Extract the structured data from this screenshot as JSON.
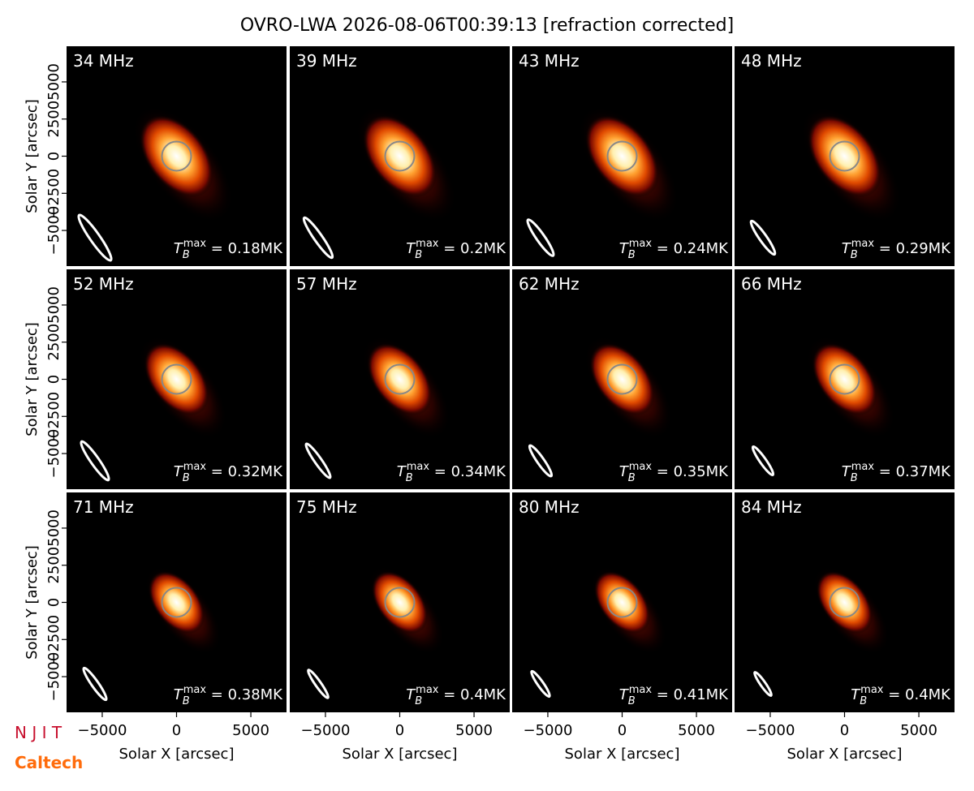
{
  "chart_data": {
    "type": "image_grid",
    "title": "OVRO-LWA 2026-08-06T00:39:13 [refraction corrected]",
    "xlabel": "Solar X [arcsec]",
    "ylabel": "Solar Y [arcsec]",
    "xlim": [
      -7400,
      7400
    ],
    "ylim": [
      -7400,
      7400
    ],
    "xticks": [
      {
        "value": -5000,
        "label": "−5000"
      },
      0,
      5000
    ],
    "yticks": [
      {
        "value": -5000,
        "label": "−5000"
      },
      {
        "value": -2500,
        "label": "−2500"
      },
      0,
      2500,
      5000
    ],
    "tb_label": {
      "symbol": "T",
      "sub": "B",
      "sup": "max",
      "eq": " = ",
      "unit": "MK"
    },
    "panels": [
      {
        "label": "34 MHz",
        "tb_max": 0.18
      },
      {
        "label": "39 MHz",
        "tb_max": 0.2
      },
      {
        "label": "43 MHz",
        "tb_max": 0.24
      },
      {
        "label": "48 MHz",
        "tb_max": 0.29
      },
      {
        "label": "52 MHz",
        "tb_max": 0.32
      },
      {
        "label": "57 MHz",
        "tb_max": 0.34
      },
      {
        "label": "62 MHz",
        "tb_max": 0.35
      },
      {
        "label": "66 MHz",
        "tb_max": 0.37
      },
      {
        "label": "71 MHz",
        "tb_max": 0.38
      },
      {
        "label": "75 MHz",
        "tb_max": 0.4
      },
      {
        "label": "80 MHz",
        "tb_max": 0.41
      },
      {
        "label": "84 MHz",
        "tb_max": 0.4
      }
    ]
  },
  "logos": {
    "njit": "N J I T",
    "caltech": "Caltech"
  }
}
